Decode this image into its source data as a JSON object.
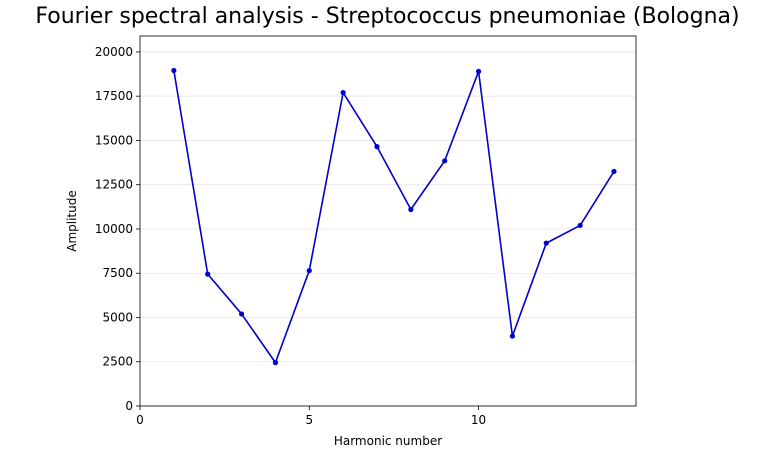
{
  "chart_data": {
    "type": "line",
    "title": "Fourier spectral analysis - Streptococcus pneumoniae (Bologna)",
    "xlabel": "Harmonic number",
    "ylabel": "Amplitude",
    "xlim": [
      0,
      14.65
    ],
    "ylim": [
      0,
      20900
    ],
    "xticks": [
      0,
      5,
      10
    ],
    "yticks": [
      0,
      2500,
      5000,
      7500,
      10000,
      12500,
      15000,
      17500,
      20000
    ],
    "grid": "horizontal",
    "legend": "none",
    "series": [
      {
        "color": "#0000cc",
        "x": [
          1,
          2,
          3,
          4,
          5,
          6,
          7,
          8,
          9,
          10,
          11,
          12,
          13,
          14
        ],
        "y": [
          18950,
          7450,
          5200,
          2450,
          7650,
          17700,
          14650,
          11100,
          13850,
          18900,
          3950,
          9200,
          10200,
          13250
        ]
      }
    ]
  }
}
